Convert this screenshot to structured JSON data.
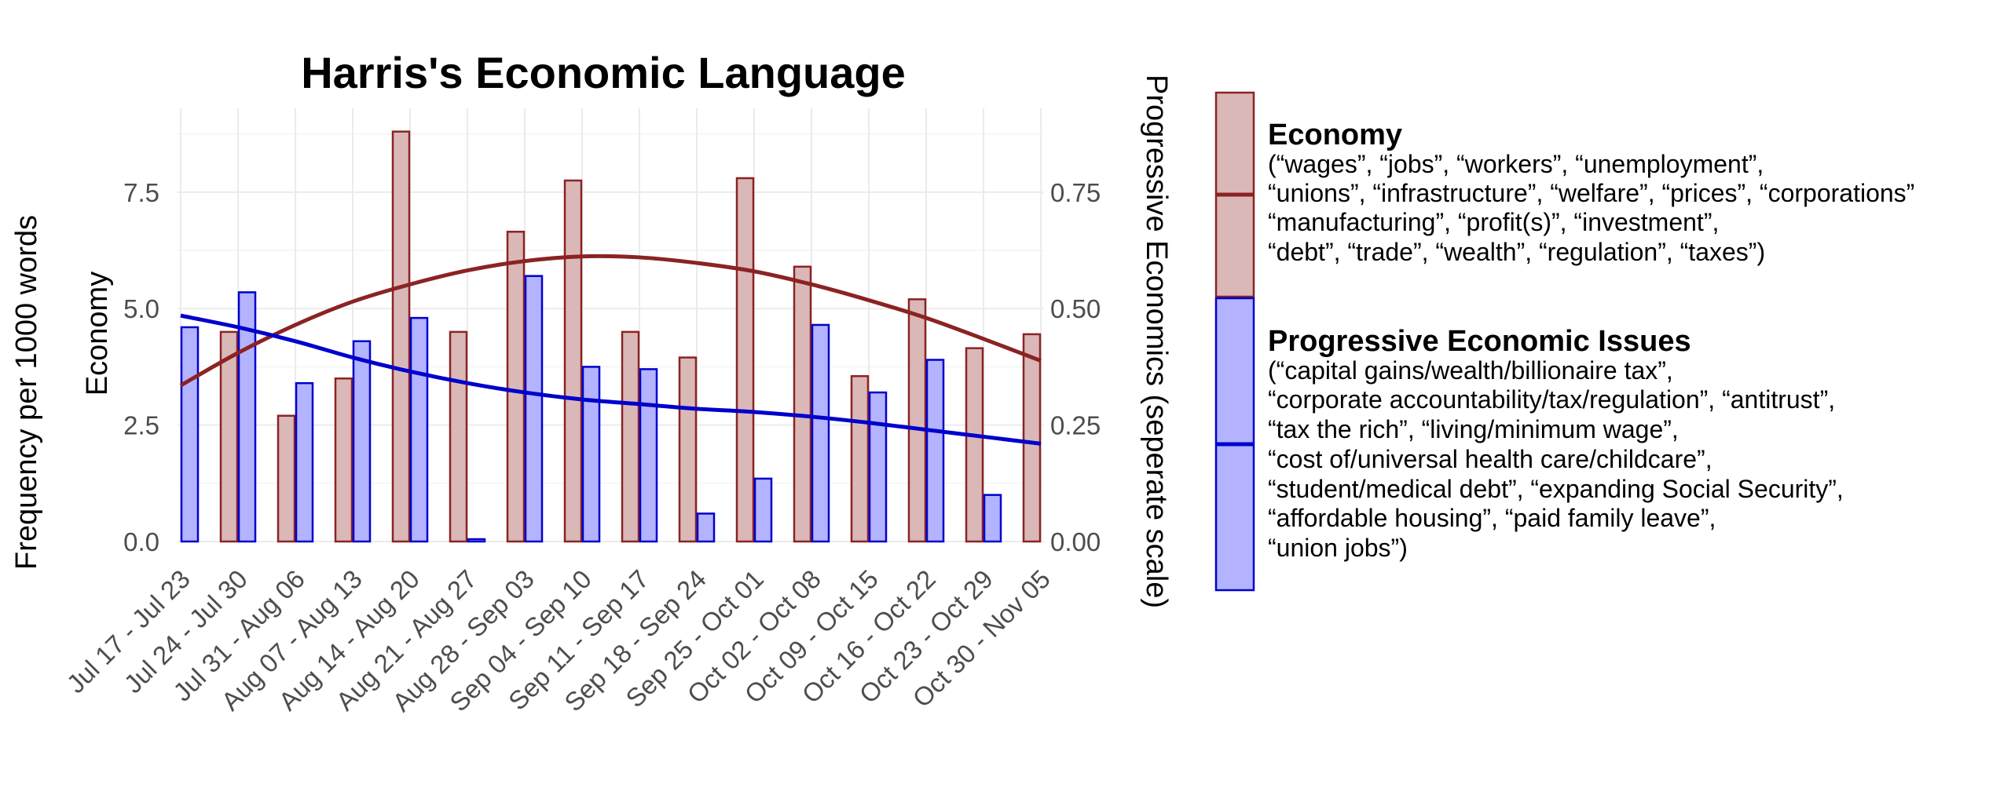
{
  "chart_data": {
    "type": "bar",
    "title": "Harris's Economic Language",
    "outer_ylabel": "Frequency per 1000 words",
    "ylabel": "Economy",
    "y2label": "Progressive Economics (seperate scale)",
    "ylim": [
      0,
      9.3
    ],
    "y2lim": [
      0,
      0.93
    ],
    "yticks": [
      "0.0",
      "2.5",
      "5.0",
      "7.5"
    ],
    "y2ticks": [
      "0.00",
      "0.25",
      "0.50",
      "0.75"
    ],
    "grid": true,
    "legend_position": "right",
    "categories": [
      "Jul 17 - Jul 23",
      "Jul 24 - Jul 30",
      "Jul 31 - Aug 06",
      "Aug 07 - Aug 13",
      "Aug 14 - Aug 20",
      "Aug 21 - Aug 27",
      "Aug 28 - Sep 03",
      "Sep 04 - Sep 10",
      "Sep 11 - Sep 17",
      "Sep 18 - Sep 24",
      "Sep 25 - Oct 01",
      "Oct 02 - Oct 08",
      "Oct 09 - Oct 15",
      "Oct 16 - Oct 22",
      "Oct 23 - Oct 29",
      "Oct 30 - Nov 05"
    ],
    "series": [
      {
        "name": "Economy",
        "axis": "left",
        "color": "#8b2323",
        "fill": "#dbb8b8",
        "values": [
          null,
          4.5,
          2.7,
          3.5,
          8.8,
          4.5,
          6.65,
          7.75,
          4.5,
          3.95,
          7.8,
          5.9,
          3.55,
          5.2,
          4.15,
          4.45
        ],
        "trend": [
          3.35,
          4.05,
          4.65,
          5.15,
          5.52,
          5.82,
          6.02,
          6.12,
          6.1,
          5.98,
          5.8,
          5.52,
          5.18,
          4.8,
          4.35,
          3.88
        ]
      },
      {
        "name": "Progressive Economic Issues",
        "axis": "right",
        "color": "#0000cd",
        "fill": "#b3b3ff",
        "values": [
          0.46,
          0.535,
          0.34,
          0.43,
          0.48,
          0.005,
          0.57,
          0.375,
          0.37,
          0.06,
          0.135,
          0.465,
          0.32,
          0.39,
          0.1,
          null
        ],
        "trend": [
          0.485,
          0.46,
          0.43,
          0.395,
          0.365,
          0.34,
          0.32,
          0.305,
          0.295,
          0.285,
          0.278,
          0.268,
          0.255,
          0.24,
          0.225,
          0.21
        ]
      }
    ]
  },
  "legend": {
    "items": [
      {
        "title": "Economy",
        "lines": [
          "(“wages”, “jobs”, “workers”, “unemployment”,",
          "“unions”, “infrastructure”, “welfare”, “prices”, “corporations”",
          "“manufacturing”, “profit(s)”, “investment”,",
          "“debt”, “trade”, “wealth”, “regulation”, “taxes”)"
        ]
      },
      {
        "title": "Progressive Economic Issues",
        "lines": [
          "(“capital gains/wealth/billionaire tax”,",
          "“corporate accountability/tax/regulation”, “antitrust”,",
          "“tax the rich”, “living/minimum wage”,",
          "“cost of/universal health care/childcare”,",
          "“student/medical debt”, “expanding Social Security”,",
          "“affordable housing”, “paid family leave”,",
          "“union jobs”)"
        ]
      }
    ]
  }
}
